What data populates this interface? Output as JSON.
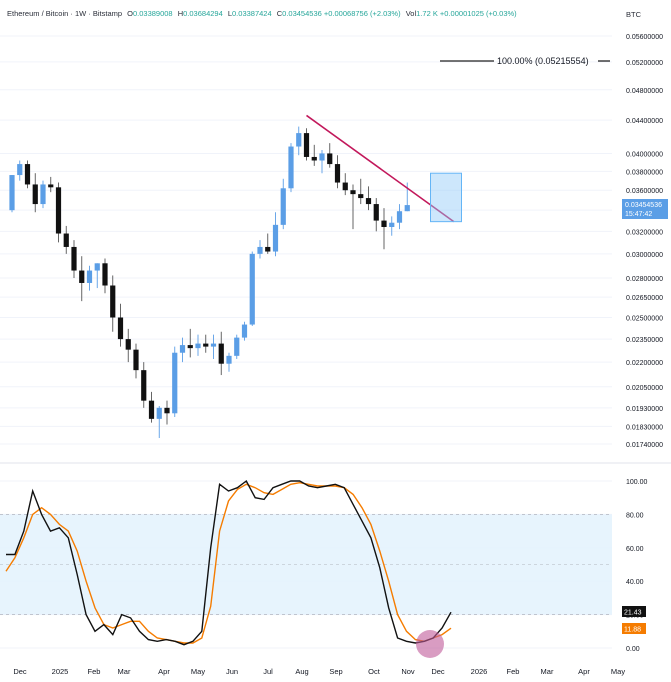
{
  "header": {
    "title": "Ethereum / Bitcoin · 1W · Bitstamp",
    "o_label": "O",
    "o_value": "0.03389008",
    "h_label": "H",
    "h_value": "0.03684294",
    "l_label": "L",
    "l_value": "0.03387424",
    "c_label": "C",
    "c_value": "0.03454536",
    "change": "+0.00068756 (+2.03%)",
    "vol_label": "Vol",
    "vol_value": "1.72 K",
    "vol_change": "+0.00001025 (+0.03%)"
  },
  "currency": "BTC",
  "fib_label": "100.00% (0.05215554)",
  "price_badge": {
    "price": "0.03454536",
    "countdown": "15:47:42"
  },
  "stoch_badges": {
    "k": "21.43",
    "d": "11.88"
  },
  "colors": {
    "bull": "#5b9ee6",
    "bear": "#111111",
    "trendline": "#c2185b",
    "k_line": "#111111",
    "d_line": "#f57c00",
    "band": "#e3f2fd",
    "box": "#90caf9",
    "circle": "#c05a9a"
  },
  "chart_data": [
    {
      "type": "candlestick",
      "title": "Ethereum / Bitcoin · 1W · Bitstamp",
      "y_scale": "log",
      "y_ticks": [
        "0.05600000",
        "0.05200000",
        "0.04800000",
        "0.04400000",
        "0.04000000",
        "0.03800000",
        "0.03600000",
        "0.03400000",
        "0.03200000",
        "0.03000000",
        "0.02800000",
        "0.02650000",
        "0.02500000",
        "0.02350000",
        "0.02200000",
        "0.02050000",
        "0.01930000",
        "0.01830000",
        "0.01740000"
      ],
      "x_labels": [
        "Dec",
        "2025",
        "Feb",
        "Mar",
        "Apr",
        "May",
        "Jun",
        "Jul",
        "Aug",
        "Sep",
        "Oct",
        "Nov",
        "Dec",
        "2026",
        "Feb",
        "Mar",
        "Apr",
        "May"
      ],
      "ohlc": [
        [
          0.034,
          0.0376,
          0.0338,
          0.0376
        ],
        [
          0.0376,
          0.0392,
          0.037,
          0.0388
        ],
        [
          0.0388,
          0.0392,
          0.0362,
          0.0366
        ],
        [
          0.0366,
          0.0378,
          0.0338,
          0.0346
        ],
        [
          0.0346,
          0.037,
          0.0342,
          0.0366
        ],
        [
          0.0366,
          0.0374,
          0.0358,
          0.0363
        ],
        [
          0.0363,
          0.0368,
          0.031,
          0.0318
        ],
        [
          0.0318,
          0.0325,
          0.03,
          0.0306
        ],
        [
          0.0306,
          0.0312,
          0.028,
          0.0286
        ],
        [
          0.0286,
          0.0298,
          0.0262,
          0.0276
        ],
        [
          0.0276,
          0.029,
          0.027,
          0.0286
        ],
        [
          0.0286,
          0.0292,
          0.0272,
          0.0292
        ],
        [
          0.0292,
          0.0296,
          0.0268,
          0.0274
        ],
        [
          0.0274,
          0.0282,
          0.024,
          0.025
        ],
        [
          0.025,
          0.026,
          0.023,
          0.0235
        ],
        [
          0.0235,
          0.0242,
          0.022,
          0.0228
        ],
        [
          0.0228,
          0.0232,
          0.021,
          0.0215
        ],
        [
          0.0215,
          0.022,
          0.0193,
          0.0197
        ],
        [
          0.0197,
          0.0202,
          0.0185,
          0.0187
        ],
        [
          0.0187,
          0.0194,
          0.0177,
          0.0193
        ],
        [
          0.0193,
          0.0197,
          0.0184,
          0.019
        ],
        [
          0.019,
          0.023,
          0.0188,
          0.0226
        ],
        [
          0.0226,
          0.0236,
          0.022,
          0.0231
        ],
        [
          0.0231,
          0.0242,
          0.0223,
          0.0229
        ],
        [
          0.0229,
          0.0238,
          0.0224,
          0.0232
        ],
        [
          0.0232,
          0.0238,
          0.0226,
          0.023
        ],
        [
          0.023,
          0.0238,
          0.0222,
          0.0232
        ],
        [
          0.0232,
          0.024,
          0.0212,
          0.0219
        ],
        [
          0.0219,
          0.0226,
          0.0214,
          0.0224
        ],
        [
          0.0224,
          0.0238,
          0.0222,
          0.0236
        ],
        [
          0.0236,
          0.0247,
          0.0234,
          0.0245
        ],
        [
          0.0245,
          0.0302,
          0.0244,
          0.03
        ],
        [
          0.03,
          0.0312,
          0.0296,
          0.0306
        ],
        [
          0.0306,
          0.0318,
          0.03,
          0.0302
        ],
        [
          0.0302,
          0.0338,
          0.0298,
          0.0326
        ],
        [
          0.0326,
          0.0372,
          0.0322,
          0.0362
        ],
        [
          0.0362,
          0.0412,
          0.0358,
          0.0408
        ],
        [
          0.0408,
          0.0432,
          0.0398,
          0.0424
        ],
        [
          0.0424,
          0.043,
          0.0392,
          0.0396
        ],
        [
          0.0396,
          0.041,
          0.0386,
          0.0392
        ],
        [
          0.0392,
          0.0404,
          0.0378,
          0.04
        ],
        [
          0.04,
          0.0412,
          0.0384,
          0.0388
        ],
        [
          0.0388,
          0.0398,
          0.0362,
          0.0368
        ],
        [
          0.0368,
          0.0378,
          0.0355,
          0.036
        ],
        [
          0.036,
          0.0366,
          0.0322,
          0.0356
        ],
        [
          0.0356,
          0.0372,
          0.0346,
          0.0352
        ],
        [
          0.0352,
          0.0364,
          0.034,
          0.0346
        ],
        [
          0.0346,
          0.0352,
          0.032,
          0.033
        ],
        [
          0.033,
          0.0342,
          0.0304,
          0.0324
        ],
        [
          0.0324,
          0.0334,
          0.0316,
          0.0328
        ],
        [
          0.0328,
          0.0346,
          0.0322,
          0.0339
        ],
        [
          0.0339,
          0.0368,
          0.0339,
          0.0345
        ]
      ]
    },
    {
      "type": "line",
      "title": "Stochastic",
      "y_ticks": [
        100,
        80,
        60,
        40,
        20,
        0
      ],
      "band": [
        20,
        80
      ],
      "series": [
        {
          "values": [
            56,
            56,
            70,
            94,
            80,
            70,
            72,
            66,
            44,
            20,
            10,
            14,
            8,
            20,
            18,
            10,
            5,
            4,
            5,
            4,
            2,
            4,
            10,
            60,
            98,
            94,
            96,
            100,
            90,
            89,
            96,
            98,
            100,
            100,
            97,
            96,
            97,
            98,
            96,
            86,
            76,
            66,
            48,
            24,
            6,
            4,
            3,
            4,
            6,
            12,
            21.43
          ]
        },
        {
          "values": [
            46,
            54,
            66,
            80,
            84,
            80,
            74,
            70,
            58,
            40,
            24,
            14,
            12,
            14,
            16,
            16,
            10,
            6,
            5,
            4,
            3,
            3,
            6,
            25,
            70,
            88,
            95,
            98,
            96,
            93,
            92,
            95,
            98,
            99,
            98,
            97,
            97,
            97,
            96,
            92,
            84,
            74,
            58,
            40,
            20,
            10,
            5,
            4,
            6,
            8,
            11.88
          ]
        }
      ]
    }
  ]
}
